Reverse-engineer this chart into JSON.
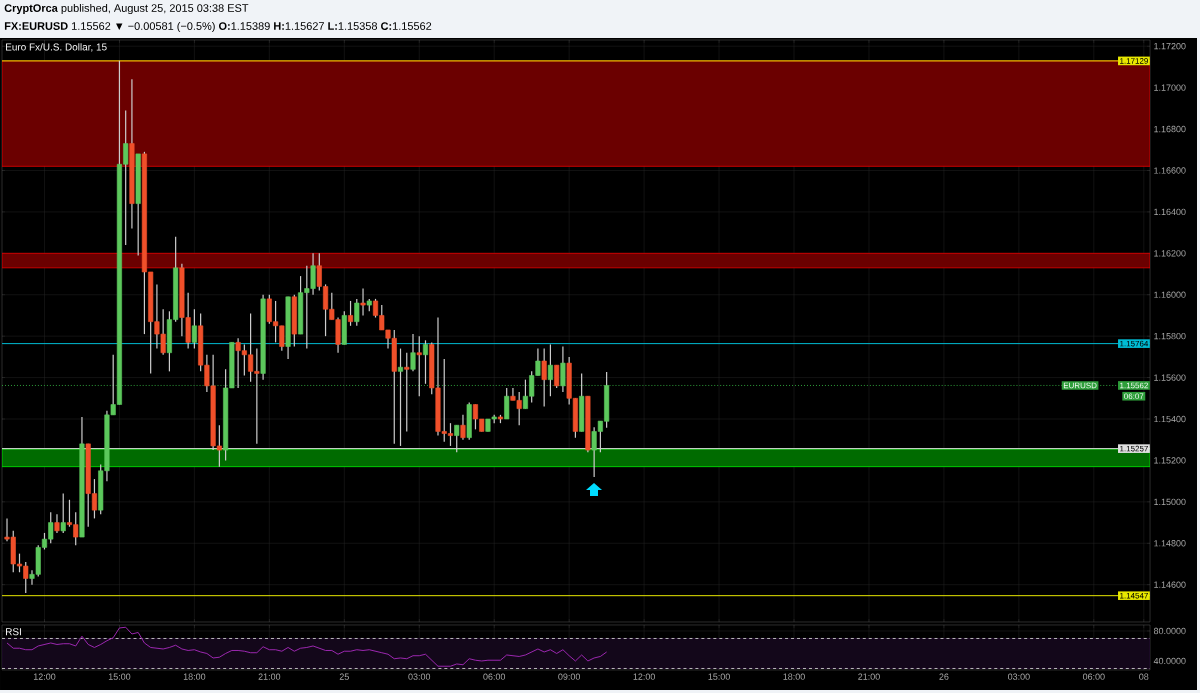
{
  "chart_data": [
    {
      "type": "candlestick",
      "title": "Euro Fx/U.S. Dollar, 15",
      "subtitle": "**FX:EURUSD** 1.15562 ▼ −0.00581 (−0.5%) **O:**1.15389 **H:**1.15627 **L:**1.15358 **C:**1.15562",
      "annotations": [
        "**CryptOrca** published, August 25, 2015 03:38 EST",
        {
          "text": "EURUSD",
          "x": "2015-08-26T05:27",
          "y": 1.15562
        },
        {
          "text": "06:07",
          "x": "2015-08-26T07:36",
          "y": 1.1551
        }
      ],
      "x": [
        "2015-08-24T10:30",
        "2015-08-24T10:45",
        "2015-08-24T11:00",
        "2015-08-24T11:15",
        "2015-08-24T11:30",
        "2015-08-24T11:45",
        "2015-08-24T12:00",
        "2015-08-24T12:15",
        "2015-08-24T12:30",
        "2015-08-24T12:45",
        "2015-08-24T13:00",
        "2015-08-24T13:15",
        "2015-08-24T13:30",
        "2015-08-24T13:45",
        "2015-08-24T14:00",
        "2015-08-24T14:15",
        "2015-08-24T14:30",
        "2015-08-24T14:45",
        "2015-08-24T15:00",
        "2015-08-24T15:15",
        "2015-08-24T15:30",
        "2015-08-24T15:45",
        "2015-08-24T16:00",
        "2015-08-24T16:15",
        "2015-08-24T16:30",
        "2015-08-24T16:45",
        "2015-08-24T17:00",
        "2015-08-24T17:15",
        "2015-08-24T17:30",
        "2015-08-24T17:45",
        "2015-08-24T18:00",
        "2015-08-24T18:15",
        "2015-08-24T18:30",
        "2015-08-24T18:45",
        "2015-08-24T19:00",
        "2015-08-24T19:15",
        "2015-08-24T19:30",
        "2015-08-24T19:45",
        "2015-08-24T20:00",
        "2015-08-24T20:15",
        "2015-08-24T20:30",
        "2015-08-24T20:45",
        "2015-08-24T21:00",
        "2015-08-24T21:15",
        "2015-08-24T21:30",
        "2015-08-24T21:45",
        "2015-08-24T22:00",
        "2015-08-24T22:15",
        "2015-08-24T22:30",
        "2015-08-24T22:45",
        "2015-08-24T23:00",
        "2015-08-24T23:15",
        "2015-08-24T23:30",
        "2015-08-24T23:45",
        "2015-08-25T00:00",
        "2015-08-25T00:15",
        "2015-08-25T00:30",
        "2015-08-25T00:45",
        "2015-08-25T01:00",
        "2015-08-25T01:15",
        "2015-08-25T01:30",
        "2015-08-25T01:45",
        "2015-08-25T02:00",
        "2015-08-25T02:15",
        "2015-08-25T02:30",
        "2015-08-25T02:45",
        "2015-08-25T03:00",
        "2015-08-25T03:15",
        "2015-08-25T03:30",
        "2015-08-25T03:45",
        "2015-08-25T04:00",
        "2015-08-25T04:15",
        "2015-08-25T04:30",
        "2015-08-25T04:45",
        "2015-08-25T05:00",
        "2015-08-25T05:15",
        "2015-08-25T05:30",
        "2015-08-25T05:45",
        "2015-08-25T06:00",
        "2015-08-25T06:15",
        "2015-08-25T06:30",
        "2015-08-25T06:45",
        "2015-08-25T07:00",
        "2015-08-25T07:15",
        "2015-08-25T07:30",
        "2015-08-25T07:45",
        "2015-08-25T08:00",
        "2015-08-25T08:15",
        "2015-08-25T08:30",
        "2015-08-25T08:45",
        "2015-08-25T09:00",
        "2015-08-25T09:15",
        "2015-08-25T09:30",
        "2015-08-25T09:45",
        "2015-08-25T10:00",
        "2015-08-25T10:15",
        "2015-08-25T10:30"
      ],
      "ohlc": [
        [
          1.1483,
          1.1492,
          1.1481,
          1.1482
        ],
        [
          1.1483,
          1.1486,
          1.1466,
          1.147
        ],
        [
          1.147,
          1.1475,
          1.1466,
          1.1469
        ],
        [
          1.1469,
          1.1471,
          1.1456,
          1.1463
        ],
        [
          1.1463,
          1.1467,
          1.146,
          1.1465
        ],
        [
          1.1465,
          1.1479,
          1.1464,
          1.1478
        ],
        [
          1.1478,
          1.1485,
          1.1477,
          1.1482
        ],
        [
          1.1482,
          1.1495,
          1.148,
          1.149
        ],
        [
          1.149,
          1.1494,
          1.1485,
          1.1486
        ],
        [
          1.1486,
          1.1504,
          1.1485,
          1.149
        ],
        [
          1.149,
          1.1501,
          1.1488,
          1.1489
        ],
        [
          1.1489,
          1.1495,
          1.1479,
          1.1483
        ],
        [
          1.1483,
          1.1541,
          1.1483,
          1.1528
        ],
        [
          1.1528,
          1.1528,
          1.1488,
          1.1504
        ],
        [
          1.1504,
          1.1511,
          1.1492,
          1.1496
        ],
        [
          1.1496,
          1.1518,
          1.1494,
          1.1515
        ],
        [
          1.1515,
          1.1544,
          1.151,
          1.1542
        ],
        [
          1.1542,
          1.1571,
          1.1542,
          1.1547
        ],
        [
          1.1547,
          1.1713,
          1.1547,
          1.1663
        ],
        [
          1.1663,
          1.1689,
          1.1624,
          1.1673
        ],
        [
          1.1673,
          1.1704,
          1.1632,
          1.1644
        ],
        [
          1.1644,
          1.1668,
          1.1619,
          1.1668
        ],
        [
          1.1668,
          1.1669,
          1.1581,
          1.1611
        ],
        [
          1.1611,
          1.1611,
          1.1562,
          1.1587
        ],
        [
          1.1587,
          1.1605,
          1.1574,
          1.1581
        ],
        [
          1.1581,
          1.1593,
          1.1571,
          1.1572
        ],
        [
          1.1572,
          1.1592,
          1.1563,
          1.1588
        ],
        [
          1.1588,
          1.1628,
          1.1587,
          1.1613
        ],
        [
          1.1613,
          1.1615,
          1.158,
          1.1589
        ],
        [
          1.1589,
          1.1601,
          1.1574,
          1.1577
        ],
        [
          1.1577,
          1.1593,
          1.1574,
          1.1585
        ],
        [
          1.1585,
          1.1591,
          1.1563,
          1.1566
        ],
        [
          1.1566,
          1.1571,
          1.1553,
          1.1556
        ],
        [
          1.1556,
          1.1571,
          1.1525,
          1.1527
        ],
        [
          1.1527,
          1.1537,
          1.1517,
          1.1525
        ],
        [
          1.1525,
          1.1564,
          1.152,
          1.1555
        ],
        [
          1.1555,
          1.1577,
          1.1555,
          1.1577
        ],
        [
          1.1577,
          1.1579,
          1.1555,
          1.1573
        ],
        [
          1.1573,
          1.1576,
          1.1561,
          1.1571
        ],
        [
          1.1571,
          1.1591,
          1.1558,
          1.1563
        ],
        [
          1.1563,
          1.1574,
          1.1528,
          1.1562
        ],
        [
          1.1562,
          1.16,
          1.1559,
          1.1598
        ],
        [
          1.1598,
          1.16,
          1.1586,
          1.1587
        ],
        [
          1.1587,
          1.1597,
          1.1577,
          1.1585
        ],
        [
          1.1585,
          1.1585,
          1.1573,
          1.1575
        ],
        [
          1.1575,
          1.1599,
          1.1569,
          1.1599
        ],
        [
          1.1599,
          1.16,
          1.1575,
          1.1581
        ],
        [
          1.1581,
          1.1609,
          1.1581,
          1.1601
        ],
        [
          1.1601,
          1.1614,
          1.1574,
          1.1603
        ],
        [
          1.1603,
          1.162,
          1.16,
          1.1614
        ],
        [
          1.1614,
          1.162,
          1.1602,
          1.1604
        ],
        [
          1.1604,
          1.1605,
          1.158,
          1.1593
        ],
        [
          1.1593,
          1.1601,
          1.1588,
          1.1588
        ],
        [
          1.1588,
          1.1589,
          1.1572,
          1.1576
        ],
        [
          1.1576,
          1.1592,
          1.1576,
          1.159
        ],
        [
          1.159,
          1.1597,
          1.1585,
          1.1587
        ],
        [
          1.1587,
          1.1598,
          1.1585,
          1.1596
        ],
        [
          1.1596,
          1.1603,
          1.159,
          1.1595
        ],
        [
          1.1595,
          1.1598,
          1.1592,
          1.1597
        ],
        [
          1.1597,
          1.1598,
          1.1589,
          1.159
        ],
        [
          1.159,
          1.1595,
          1.1583,
          1.1583
        ],
        [
          1.1583,
          1.1583,
          1.1574,
          1.1579
        ],
        [
          1.1579,
          1.1583,
          1.1528,
          1.1563
        ],
        [
          1.1563,
          1.1574,
          1.1527,
          1.1565
        ],
        [
          1.1565,
          1.1572,
          1.1534,
          1.1564
        ],
        [
          1.1564,
          1.1581,
          1.1563,
          1.1572
        ],
        [
          1.1572,
          1.158,
          1.1551,
          1.1571
        ],
        [
          1.1571,
          1.1578,
          1.1557,
          1.1576
        ],
        [
          1.1576,
          1.1577,
          1.1552,
          1.1555
        ],
        [
          1.1555,
          1.1589,
          1.1532,
          1.1534
        ],
        [
          1.1534,
          1.1569,
          1.1529,
          1.1533
        ],
        [
          1.1533,
          1.1538,
          1.1527,
          1.1532
        ],
        [
          1.1532,
          1.1537,
          1.1524,
          1.1537
        ],
        [
          1.1537,
          1.1542,
          1.153,
          1.1531
        ],
        [
          1.1531,
          1.1548,
          1.153,
          1.1547
        ],
        [
          1.1547,
          1.1547,
          1.1535,
          1.154
        ],
        [
          1.154,
          1.154,
          1.1534,
          1.1534
        ],
        [
          1.1534,
          1.154,
          1.1534,
          1.154
        ],
        [
          1.154,
          1.1542,
          1.1538,
          1.1541
        ],
        [
          1.1541,
          1.1542,
          1.1538,
          1.154
        ],
        [
          1.154,
          1.1555,
          1.154,
          1.1551
        ],
        [
          1.1551,
          1.1555,
          1.1549,
          1.1549
        ],
        [
          1.1549,
          1.1553,
          1.1537,
          1.1545
        ],
        [
          1.1545,
          1.1559,
          1.1545,
          1.1551
        ],
        [
          1.1551,
          1.1563,
          1.1548,
          1.1561
        ],
        [
          1.1561,
          1.1574,
          1.1561,
          1.1568
        ],
        [
          1.1568,
          1.1574,
          1.1546,
          1.1559
        ],
        [
          1.1559,
          1.1576,
          1.1551,
          1.1566
        ],
        [
          1.1566,
          1.1566,
          1.1555,
          1.1556
        ],
        [
          1.1556,
          1.1575,
          1.1553,
          1.1567
        ],
        [
          1.1567,
          1.157,
          1.1547,
          1.155
        ],
        [
          1.155,
          1.155,
          1.1531,
          1.1534
        ],
        [
          1.1534,
          1.1562,
          1.1534,
          1.1551
        ],
        [
          1.1551,
          1.1551,
          1.1524,
          1.1525
        ],
        [
          1.1525,
          1.1536,
          1.1512,
          1.1534
        ],
        [
          1.1534,
          1.1539,
          1.1524,
          1.1539
        ],
        [
          1.15389,
          1.15627,
          1.15358,
          1.15562
        ]
      ],
      "colors": [
        "#f0502a",
        "#f0502a",
        "#f0502a",
        "#f0502a",
        "#5cc85c",
        "#5cc85c",
        "#5cc85c",
        "#5cc85c",
        "#f0502a",
        "#5cc85c",
        "#f0502a",
        "#f0502a",
        "#5cc85c",
        "#f0502a",
        "#f0502a",
        "#5cc85c",
        "#5cc85c",
        "#5cc85c",
        "#5cc85c",
        "#5cc85c",
        "#f0502a",
        "#5cc85c",
        "#f0502a",
        "#f0502a",
        "#f0502a",
        "#f0502a",
        "#5cc85c",
        "#5cc85c",
        "#f0502a",
        "#f0502a",
        "#5cc85c",
        "#f0502a",
        "#f0502a",
        "#f0502a",
        "#f0502a",
        "#5cc85c",
        "#5cc85c",
        "#f0502a",
        "#f0502a",
        "#f0502a",
        "#f0502a",
        "#5cc85c",
        "#f0502a",
        "#f0502a",
        "#f0502a",
        "#5cc85c",
        "#f0502a",
        "#5cc85c",
        "#5cc85c",
        "#5cc85c",
        "#f0502a",
        "#f0502a",
        "#f0502a",
        "#f0502a",
        "#5cc85c",
        "#f0502a",
        "#5cc85c",
        "#f0502a",
        "#5cc85c",
        "#f0502a",
        "#f0502a",
        "#f0502a",
        "#f0502a",
        "#5cc85c",
        "#f0502a",
        "#5cc85c",
        "#f0502a",
        "#5cc85c",
        "#f0502a",
        "#f0502a",
        "#f0502a",
        "#f0502a",
        "#5cc85c",
        "#f0502a",
        "#5cc85c",
        "#f0502a",
        "#f0502a",
        "#5cc85c",
        "#5cc85c",
        "#f0502a",
        "#5cc85c",
        "#f0502a",
        "#f0502a",
        "#5cc85c",
        "#5cc85c",
        "#5cc85c",
        "#f0502a",
        "#5cc85c",
        "#f0502a",
        "#5cc85c",
        "#f0502a",
        "#f0502a",
        "#5cc85c",
        "#f0502a",
        "#5cc85c",
        "#5cc85c",
        "#5cc85c"
      ],
      "xlim": [
        "2015-08-24T10:18",
        "2015-08-26T08:15"
      ],
      "xticks": [
        {
          "value": "2015-08-24T12:00",
          "label": null
        },
        {
          "value": "2015-08-24T15:00",
          "label": null
        },
        {
          "value": "2015-08-24T18:00",
          "label": null
        },
        {
          "value": "2015-08-24T21:00",
          "label": null
        },
        {
          "value": "2015-08-25T00:00",
          "label": null
        },
        {
          "value": "2015-08-25T03:00",
          "label": null
        },
        {
          "value": "2015-08-25T06:00",
          "label": null
        },
        {
          "value": "2015-08-25T09:00",
          "label": null
        },
        {
          "value": "2015-08-25T12:00",
          "label": null
        },
        {
          "value": "2015-08-25T15:00",
          "label": null
        },
        {
          "value": "2015-08-25T18:00",
          "label": null
        },
        {
          "value": "2015-08-25T21:00",
          "label": null
        },
        {
          "value": "2015-08-26T00:00",
          "label": null
        },
        {
          "value": "2015-08-26T03:00",
          "label": null
        },
        {
          "value": "2015-08-26T06:00",
          "label": null
        },
        {
          "value": "2015-08-26T08:00",
          "label": null
        }
      ],
      "ylim": [
        1.1442,
        1.1723
      ],
      "yticks": [
        {
          "value": 1.146,
          "label": "1.14600"
        },
        {
          "value": 1.148,
          "label": "1.14800"
        },
        {
          "value": 1.15,
          "label": "1.15000"
        },
        {
          "value": 1.152,
          "label": "1.15200"
        },
        {
          "value": 1.154,
          "label": "1.15400"
        },
        {
          "value": 1.156,
          "label": "1.15600"
        },
        {
          "value": 1.158,
          "label": "1.15800"
        },
        {
          "value": 1.16,
          "label": "1.16000"
        },
        {
          "value": 1.162,
          "label": "1.16200"
        },
        {
          "value": 1.164,
          "label": "1.16400"
        },
        {
          "value": 1.166,
          "label": "1.16600"
        },
        {
          "value": 1.168,
          "label": "1.16800"
        },
        {
          "value": 1.17,
          "label": "1.17000"
        },
        {
          "value": 1.172,
          "label": "1.17200"
        }
      ],
      "tick_labels": "y",
      "grid": true,
      "bands": [
        {
          "axis": "y",
          "from": 1.1662,
          "to": 1.17129,
          "color": "#6b0000"
        },
        {
          "axis": "y",
          "from": 1.1613,
          "to": 1.162,
          "color": "#6b0000"
        },
        {
          "axis": "y",
          "from": 1.1517,
          "to": 1.15255,
          "color": "#006b00"
        }
      ],
      "ref_lines": [
        {
          "axis": "y",
          "value": 1.17129,
          "label": "1.17129",
          "color": "#e8e800"
        },
        {
          "axis": "y",
          "value": 1.15764,
          "label": "1.15764",
          "color": "#00bcd4"
        },
        {
          "axis": "y",
          "value": 1.15562,
          "label": "1.15562",
          "color": "#2e9e3a",
          "line_style": "dotted"
        },
        {
          "axis": "y",
          "value": 1.15257,
          "label": "1.15257",
          "color": "#e0e0e0"
        },
        {
          "axis": "y",
          "value": 1.14547,
          "label": "1.14547",
          "color": "#e8e800"
        }
      ]
    },
    {
      "type": "line",
      "title": "RSI",
      "x": [
        "2015-08-24T10:30",
        "2015-08-24T10:45",
        "2015-08-24T11:00",
        "2015-08-24T11:15",
        "2015-08-24T11:30",
        "2015-08-24T11:45",
        "2015-08-24T12:00",
        "2015-08-24T12:15",
        "2015-08-24T12:30",
        "2015-08-24T12:45",
        "2015-08-24T13:00",
        "2015-08-24T13:15",
        "2015-08-24T13:30",
        "2015-08-24T13:45",
        "2015-08-24T14:00",
        "2015-08-24T14:15",
        "2015-08-24T14:30",
        "2015-08-24T14:45",
        "2015-08-24T15:00",
        "2015-08-24T15:15",
        "2015-08-24T15:30",
        "2015-08-24T15:45",
        "2015-08-24T16:00",
        "2015-08-24T16:15",
        "2015-08-24T16:30",
        "2015-08-24T16:45",
        "2015-08-24T17:00",
        "2015-08-24T17:15",
        "2015-08-24T17:30",
        "2015-08-24T17:45",
        "2015-08-24T18:00",
        "2015-08-24T18:15",
        "2015-08-24T18:30",
        "2015-08-24T18:45",
        "2015-08-24T19:00",
        "2015-08-24T19:15",
        "2015-08-24T19:30",
        "2015-08-24T19:45",
        "2015-08-24T20:00",
        "2015-08-24T20:15",
        "2015-08-24T20:30",
        "2015-08-24T20:45",
        "2015-08-24T21:00",
        "2015-08-24T21:15",
        "2015-08-24T21:30",
        "2015-08-24T21:45",
        "2015-08-24T22:00",
        "2015-08-24T22:15",
        "2015-08-24T22:30",
        "2015-08-24T22:45",
        "2015-08-24T23:00",
        "2015-08-24T23:15",
        "2015-08-24T23:30",
        "2015-08-24T23:45",
        "2015-08-25T00:00",
        "2015-08-25T00:15",
        "2015-08-25T00:30",
        "2015-08-25T00:45",
        "2015-08-25T01:00",
        "2015-08-25T01:15",
        "2015-08-25T01:30",
        "2015-08-25T01:45",
        "2015-08-25T02:00",
        "2015-08-25T02:15",
        "2015-08-25T02:30",
        "2015-08-25T02:45",
        "2015-08-25T03:00",
        "2015-08-25T03:15",
        "2015-08-25T03:30",
        "2015-08-25T03:45",
        "2015-08-25T04:00",
        "2015-08-25T04:15",
        "2015-08-25T04:30",
        "2015-08-25T04:45",
        "2015-08-25T05:00",
        "2015-08-25T05:15",
        "2015-08-25T05:30",
        "2015-08-25T05:45",
        "2015-08-25T06:00",
        "2015-08-25T06:15",
        "2015-08-25T06:30",
        "2015-08-25T06:45",
        "2015-08-25T07:00",
        "2015-08-25T07:15",
        "2015-08-25T07:30",
        "2015-08-25T07:45",
        "2015-08-25T08:00",
        "2015-08-25T08:15",
        "2015-08-25T08:30",
        "2015-08-25T08:45",
        "2015-08-25T09:00",
        "2015-08-25T09:15",
        "2015-08-25T09:30",
        "2015-08-25T09:45",
        "2015-08-25T10:00",
        "2015-08-25T10:15",
        "2015-08-25T10:30"
      ],
      "series": [
        {
          "color": "#9c27b0",
          "values": [
            64,
            57,
            57,
            55,
            55,
            60,
            62,
            64,
            62,
            63,
            63,
            60,
            73,
            62,
            58,
            62,
            67,
            71,
            84,
            85,
            76,
            78,
            64,
            58,
            57,
            56,
            58,
            61,
            56,
            54,
            55,
            52,
            50,
            44,
            45,
            50,
            54,
            54,
            53,
            51,
            51,
            59,
            55,
            55,
            53,
            58,
            53,
            57,
            58,
            60,
            57,
            54,
            54,
            49,
            53,
            53,
            55,
            54,
            55,
            53,
            51,
            49,
            43,
            44,
            43,
            47,
            47,
            49,
            41,
            33,
            33,
            33,
            36,
            35,
            43,
            41,
            40,
            41,
            41,
            41,
            48,
            47,
            46,
            48,
            52,
            56,
            52,
            55,
            50,
            55,
            47,
            40,
            48,
            40,
            44,
            46,
            52
          ]
        }
      ],
      "xlim": [
        "2015-08-24T10:18",
        "2015-08-26T08:15"
      ],
      "xticks": [
        {
          "value": "2015-08-24T12:00",
          "label": "12:00"
        },
        {
          "value": "2015-08-24T15:00",
          "label": "15:00"
        },
        {
          "value": "2015-08-24T18:00",
          "label": "18:00"
        },
        {
          "value": "2015-08-24T21:00",
          "label": "21:00"
        },
        {
          "value": "2015-08-25T00:00",
          "label": "25"
        },
        {
          "value": "2015-08-25T03:00",
          "label": "03:00"
        },
        {
          "value": "2015-08-25T06:00",
          "label": "06:00"
        },
        {
          "value": "2015-08-25T09:00",
          "label": "09:00"
        },
        {
          "value": "2015-08-25T12:00",
          "label": "12:00"
        },
        {
          "value": "2015-08-25T15:00",
          "label": "15:00"
        },
        {
          "value": "2015-08-25T18:00",
          "label": "18:00"
        },
        {
          "value": "2015-08-25T21:00",
          "label": "21:00"
        },
        {
          "value": "2015-08-26T00:00",
          "label": "26"
        },
        {
          "value": "2015-08-26T03:00",
          "label": "03:00"
        },
        {
          "value": "2015-08-26T06:00",
          "label": "06:00"
        },
        {
          "value": "2015-08-26T08:00",
          "label": "08"
        }
      ],
      "ylim": [
        28,
        88
      ],
      "yticks": [
        {
          "value": 40,
          "label": "40.0000"
        },
        {
          "value": 80,
          "label": "80.0000"
        }
      ],
      "grid": true,
      "bands": [
        {
          "axis": "y",
          "from": 30,
          "to": 70,
          "color": "#13071a"
        }
      ],
      "ref_lines": [
        {
          "axis": "y",
          "value": 70,
          "color": "#bbbbbb",
          "line_style": "dashed"
        },
        {
          "axis": "y",
          "value": 30,
          "color": "#bbbbbb",
          "line_style": "dashed"
        }
      ]
    }
  ]
}
